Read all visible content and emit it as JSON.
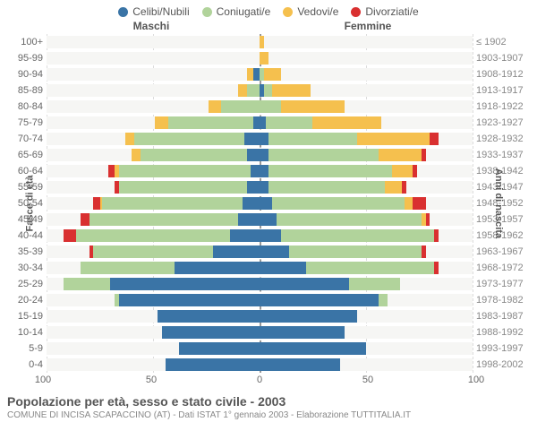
{
  "legend": [
    {
      "label": "Celibi/Nubili",
      "color": "#3a74a6"
    },
    {
      "label": "Coniugati/e",
      "color": "#b1d39b"
    },
    {
      "label": "Vedovi/e",
      "color": "#f5c04e"
    },
    {
      "label": "Divorziati/e",
      "color": "#d93030"
    }
  ],
  "header_left": "Maschi",
  "header_right": "Femmine",
  "y_left_label": "Fasce di età",
  "y_right_label": "Anni di nascita",
  "x_max": 100,
  "x_ticks": [
    100,
    50,
    0,
    50,
    100
  ],
  "colors": {
    "grid": "#dddddd",
    "center": "#999999",
    "bg": "#ffffff",
    "plot_bg": "#f6f6f4"
  },
  "rows": [
    {
      "age": "100+",
      "year": "≤ 1902",
      "m": [
        0,
        0,
        0,
        0
      ],
      "f": [
        0,
        0,
        2,
        0
      ]
    },
    {
      "age": "95-99",
      "year": "1903-1907",
      "m": [
        0,
        0,
        0,
        0
      ],
      "f": [
        0,
        0,
        4,
        0
      ]
    },
    {
      "age": "90-94",
      "year": "1908-1912",
      "m": [
        3,
        0,
        3,
        0
      ],
      "f": [
        0,
        2,
        8,
        0
      ]
    },
    {
      "age": "85-89",
      "year": "1913-1917",
      "m": [
        0,
        6,
        4,
        0
      ],
      "f": [
        2,
        4,
        18,
        0
      ]
    },
    {
      "age": "80-84",
      "year": "1918-1922",
      "m": [
        0,
        18,
        6,
        0
      ],
      "f": [
        0,
        10,
        30,
        0
      ]
    },
    {
      "age": "75-79",
      "year": "1923-1927",
      "m": [
        3,
        40,
        6,
        0
      ],
      "f": [
        3,
        22,
        32,
        0
      ]
    },
    {
      "age": "70-74",
      "year": "1928-1932",
      "m": [
        7,
        52,
        4,
        0
      ],
      "f": [
        4,
        42,
        34,
        4
      ]
    },
    {
      "age": "65-69",
      "year": "1933-1937",
      "m": [
        6,
        50,
        4,
        0
      ],
      "f": [
        4,
        52,
        20,
        2
      ]
    },
    {
      "age": "60-64",
      "year": "1938-1942",
      "m": [
        4,
        62,
        2,
        3
      ],
      "f": [
        4,
        58,
        10,
        2
      ]
    },
    {
      "age": "55-59",
      "year": "1943-1947",
      "m": [
        6,
        60,
        0,
        2
      ],
      "f": [
        4,
        55,
        8,
        2
      ]
    },
    {
      "age": "50-54",
      "year": "1948-1952",
      "m": [
        8,
        66,
        1,
        3
      ],
      "f": [
        6,
        62,
        4,
        6
      ]
    },
    {
      "age": "45-49",
      "year": "1953-1957",
      "m": [
        10,
        70,
        0,
        4
      ],
      "f": [
        8,
        68,
        2,
        2
      ]
    },
    {
      "age": "40-44",
      "year": "1958-1962",
      "m": [
        14,
        72,
        0,
        6
      ],
      "f": [
        10,
        72,
        0,
        2
      ]
    },
    {
      "age": "35-39",
      "year": "1963-1967",
      "m": [
        22,
        56,
        0,
        2
      ],
      "f": [
        14,
        62,
        0,
        2
      ]
    },
    {
      "age": "30-34",
      "year": "1968-1972",
      "m": [
        40,
        44,
        0,
        0
      ],
      "f": [
        22,
        60,
        0,
        2
      ]
    },
    {
      "age": "25-29",
      "year": "1973-1977",
      "m": [
        70,
        22,
        0,
        0
      ],
      "f": [
        42,
        24,
        0,
        0
      ]
    },
    {
      "age": "20-24",
      "year": "1978-1982",
      "m": [
        66,
        2,
        0,
        0
      ],
      "f": [
        56,
        4,
        0,
        0
      ]
    },
    {
      "age": "15-19",
      "year": "1983-1987",
      "m": [
        48,
        0,
        0,
        0
      ],
      "f": [
        46,
        0,
        0,
        0
      ]
    },
    {
      "age": "10-14",
      "year": "1988-1992",
      "m": [
        46,
        0,
        0,
        0
      ],
      "f": [
        40,
        0,
        0,
        0
      ]
    },
    {
      "age": "5-9",
      "year": "1993-1997",
      "m": [
        38,
        0,
        0,
        0
      ],
      "f": [
        50,
        0,
        0,
        0
      ]
    },
    {
      "age": "0-4",
      "year": "1998-2002",
      "m": [
        44,
        0,
        0,
        0
      ],
      "f": [
        38,
        0,
        0,
        0
      ]
    }
  ],
  "footer": {
    "title": "Popolazione per età, sesso e stato civile - 2003",
    "sub": "COMUNE DI INCISA SCAPACCINO (AT) - Dati ISTAT 1° gennaio 2003 - Elaborazione TUTTITALIA.IT"
  }
}
